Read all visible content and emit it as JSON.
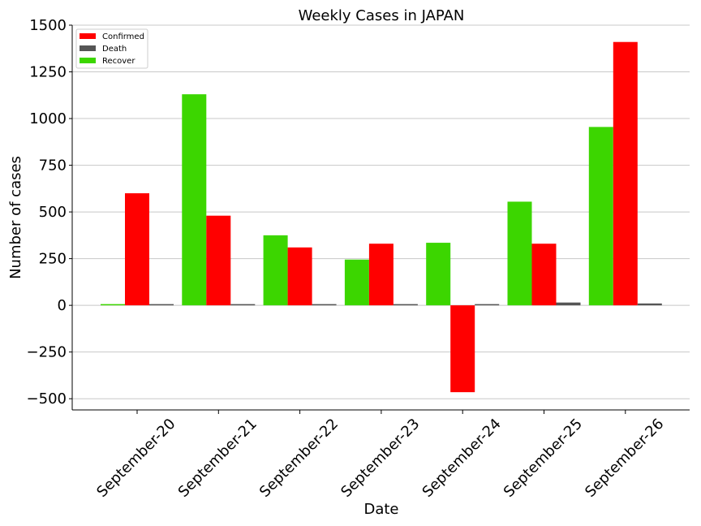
{
  "chart_data": {
    "type": "bar",
    "title": "Weekly Cases in JAPAN",
    "xlabel": "Date",
    "ylabel": "Number of cases",
    "categories": [
      "September-20",
      "September-21",
      "September-22",
      "September-23",
      "September-24",
      "September-25",
      "September-26"
    ],
    "series": [
      {
        "name": "Recover",
        "color": "#3cd600",
        "values": [
          0,
          1130,
          375,
          245,
          335,
          555,
          955
        ]
      },
      {
        "name": "Confirmed",
        "color": "#ff0000",
        "values": [
          600,
          480,
          310,
          330,
          -465,
          330,
          1410
        ]
      },
      {
        "name": "Death",
        "color": "#555555",
        "values": [
          5,
          4,
          4,
          3,
          4,
          15,
          10
        ]
      }
    ],
    "legend": {
      "position": "top-left",
      "entries": [
        {
          "name": "Confirmed",
          "color": "#ff0000"
        },
        {
          "name": "Death",
          "color": "#555555"
        },
        {
          "name": "Recover",
          "color": "#3cd600"
        }
      ]
    },
    "ylim": [
      -560,
      1500
    ],
    "yticks": [
      -500,
      -250,
      0,
      250,
      500,
      750,
      1000,
      1250,
      1500
    ],
    "ytick_labels": [
      "−500",
      "−250",
      "0",
      "250",
      "500",
      "750",
      "1000",
      "1250",
      "1500"
    ],
    "grid": "horizontal"
  }
}
